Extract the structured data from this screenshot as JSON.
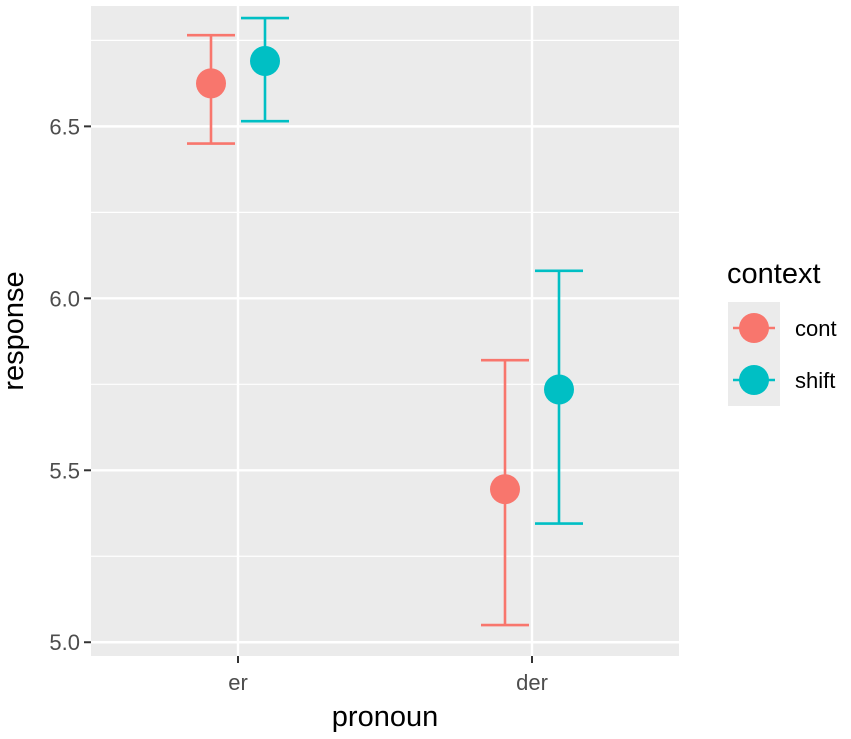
{
  "chart_data": {
    "type": "scatter",
    "subtype": "point-errorbar",
    "xlabel": "pronoun",
    "ylabel": "response",
    "categories": [
      "er",
      "der"
    ],
    "ylim": [
      4.96,
      6.85
    ],
    "yticks": [
      5.0,
      5.5,
      6.0,
      6.5
    ],
    "ytick_labels": [
      "5.0",
      "5.5",
      "6.0",
      "6.5"
    ],
    "grid": true,
    "legend": {
      "title": "context",
      "position": "right"
    },
    "series": [
      {
        "name": "cont",
        "color": "#F8766D",
        "values": [
          6.625,
          5.445
        ],
        "lower": [
          6.45,
          5.05
        ],
        "upper": [
          6.765,
          5.82
        ]
      },
      {
        "name": "shift",
        "color": "#00BFC4",
        "values": [
          6.69,
          5.735
        ],
        "lower": [
          6.515,
          5.345
        ],
        "upper": [
          6.815,
          6.08
        ]
      }
    ]
  }
}
